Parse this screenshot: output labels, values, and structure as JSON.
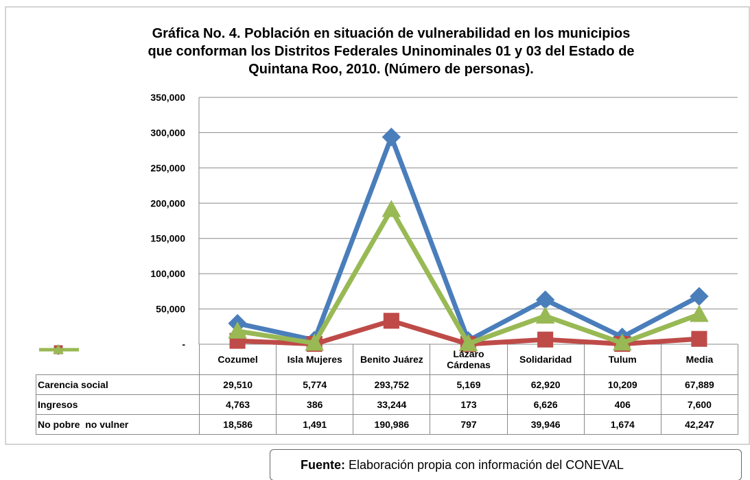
{
  "chart_data": {
    "type": "line",
    "title": [
      "Gráfica No. 4. Población en situación de vulnerabilidad en los municipios",
      "que conforman los Distritos Federales Uninominales 01 y 03 del Estado de",
      "Quintana Roo, 2010. (Número de personas)."
    ],
    "categories": [
      "Cozumel",
      "Isla Mujeres",
      "Benito Juárez",
      "Lázaro Cárdenas",
      "Solidaridad",
      "Tulum",
      "Media"
    ],
    "series": [
      {
        "name": "Carencia social",
        "color": "#4a7ebb",
        "marker": "diamond",
        "values": [
          29510,
          5774,
          293752,
          5169,
          62920,
          10209,
          67889
        ],
        "value_labels": [
          "29,510",
          "5,774",
          "293,752",
          "5,169",
          "62,920",
          "10,209",
          "67,889"
        ]
      },
      {
        "name": "Ingresos",
        "color": "#be4b48",
        "marker": "square",
        "values": [
          4763,
          386,
          33244,
          173,
          6626,
          406,
          7600
        ],
        "value_labels": [
          "4,763",
          "386",
          "33,244",
          "173",
          "6,626",
          "406",
          "7,600"
        ]
      },
      {
        "name": "No pobre  no vulner",
        "color": "#98b954",
        "marker": "triangle",
        "values": [
          18586,
          1491,
          190986,
          797,
          39946,
          1674,
          42247
        ],
        "value_labels": [
          "18,586",
          "1,491",
          "190,986",
          "797",
          "39,946",
          "1,674",
          "42,247"
        ]
      }
    ],
    "ylim": [
      0,
      350000
    ],
    "yticks": [
      {
        "value": 0,
        "label": "-"
      },
      {
        "value": 50000,
        "label": "50,000"
      },
      {
        "value": 100000,
        "label": "100,000"
      },
      {
        "value": 150000,
        "label": "150,000"
      },
      {
        "value": 200000,
        "label": "200,000"
      },
      {
        "value": 250000,
        "label": "250,000"
      },
      {
        "value": 300000,
        "label": "300,000"
      },
      {
        "value": 350000,
        "label": "350,000"
      }
    ],
    "grid": true
  },
  "source": {
    "label": "Fuente:",
    "text": "Elaboración propia con información del CONEVAL"
  }
}
